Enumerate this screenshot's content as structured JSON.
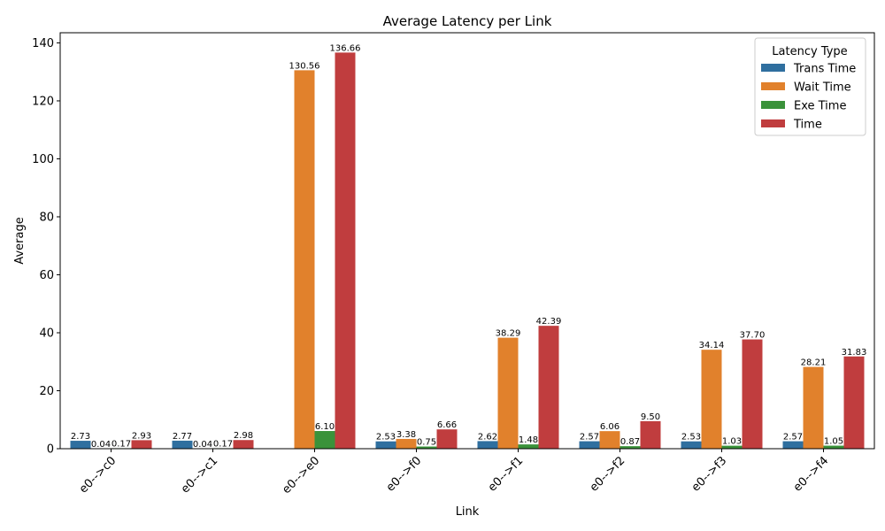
{
  "chart_data": {
    "type": "bar",
    "title": "Average Latency per Link",
    "xlabel": "Link",
    "ylabel": "Average",
    "categories": [
      "e0-->c0",
      "e0-->c1",
      "e0-->e0",
      "e0-->f0",
      "e0-->f1",
      "e0-->f2",
      "e0-->f3",
      "e0-->f4"
    ],
    "series": [
      {
        "name": "Trans Time",
        "color": "#2f6f9f",
        "values": [
          2.73,
          2.77,
          null,
          2.53,
          2.62,
          2.57,
          2.53,
          2.57
        ],
        "labels": [
          "2.73",
          "2.77",
          null,
          "2.53",
          "2.62",
          "2.57",
          "2.53",
          "2.57"
        ]
      },
      {
        "name": "Wait Time",
        "color": "#e1812c",
        "values": [
          0.04,
          0.04,
          130.56,
          3.38,
          38.29,
          6.06,
          34.14,
          28.21
        ],
        "labels": [
          "0.04",
          "0.04",
          "130.56",
          "3.38",
          "38.29",
          "6.06",
          "34.14",
          "28.21"
        ]
      },
      {
        "name": "Exe Time",
        "color": "#3a923a",
        "values": [
          0.17,
          0.17,
          6.1,
          0.75,
          1.48,
          0.87,
          1.03,
          1.05
        ],
        "labels": [
          "0.17",
          "0.17",
          "6.10",
          "0.75",
          "1.48",
          "0.87",
          "1.03",
          "1.05"
        ]
      },
      {
        "name": "Time",
        "color": "#c03d3e",
        "values": [
          2.93,
          2.98,
          136.66,
          6.66,
          42.39,
          9.5,
          37.7,
          31.83
        ],
        "labels": [
          "2.93",
          "2.98",
          "136.66",
          "6.66",
          "42.39",
          "9.50",
          "37.70",
          "31.83"
        ]
      }
    ],
    "ylim": [
      0,
      143.5
    ],
    "yticks": [
      0,
      20,
      40,
      60,
      80,
      100,
      120,
      140
    ],
    "grid": false,
    "legend": {
      "title": "Latency Type",
      "placement": "top-right"
    }
  }
}
